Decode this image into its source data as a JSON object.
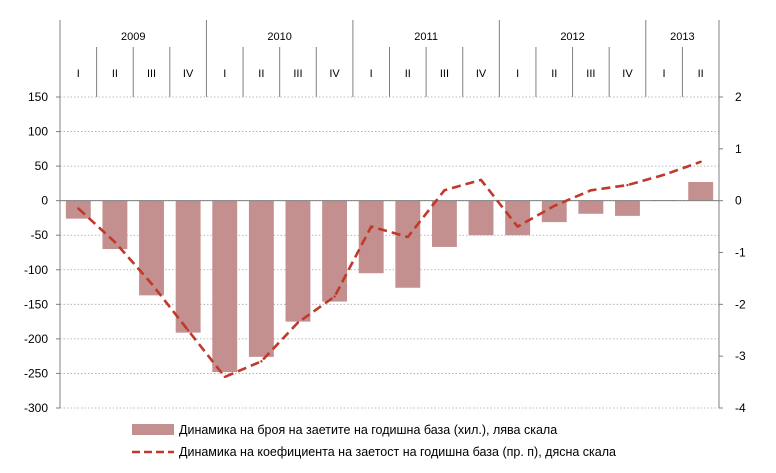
{
  "chart_data": {
    "type": "bar",
    "years": [
      {
        "label": "2009",
        "quarters": 4
      },
      {
        "label": "2010",
        "quarters": 4
      },
      {
        "label": "2011",
        "quarters": 4
      },
      {
        "label": "2012",
        "quarters": 4
      },
      {
        "label": "2013",
        "quarters": 2
      }
    ],
    "categories": [
      "I",
      "II",
      "III",
      "IV",
      "I",
      "II",
      "III",
      "IV",
      "I",
      "II",
      "III",
      "IV",
      "I",
      "II",
      "III",
      "IV",
      "I",
      "II"
    ],
    "series": [
      {
        "name": "Динамика на броя на заетите на годишна база (хил.), лява скала",
        "kind": "bar",
        "axis": "left",
        "color": "#c48f8f",
        "values": [
          -26,
          -70,
          -137,
          -191,
          -248,
          -226,
          -175,
          -146,
          -105,
          -126,
          -67,
          -50,
          -50,
          -31,
          -19,
          -22,
          1,
          27
        ]
      },
      {
        "name": "Динамика на коефициента на заетост на годишна база (пр. п), дясна скала",
        "kind": "line",
        "axis": "right",
        "color": "#c0392b",
        "values": [
          -0.15,
          -0.8,
          -1.6,
          -2.5,
          -3.4,
          -3.1,
          -2.35,
          -1.85,
          -0.5,
          -0.7,
          0.2,
          0.4,
          -0.5,
          -0.1,
          0.2,
          0.3,
          0.5,
          0.75
        ]
      }
    ],
    "y_left": {
      "min": -300,
      "max": 150,
      "ticks": [
        150,
        100,
        50,
        0,
        -50,
        -100,
        -150,
        -200,
        -250,
        -300
      ]
    },
    "y_right": {
      "min": -4,
      "max": 2,
      "ticks": [
        2,
        1,
        0,
        -1,
        -2,
        -3,
        -4
      ]
    },
    "legend_position": "bottom"
  }
}
